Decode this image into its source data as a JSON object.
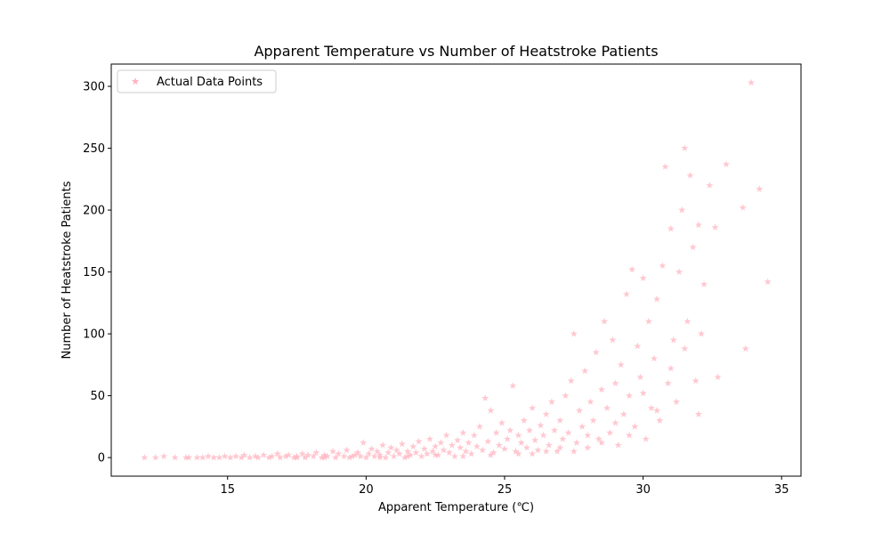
{
  "chart_data": {
    "type": "scatter",
    "title": "Apparent Temperature vs Number of Heatstroke Patients",
    "xlabel": "Apparent Temperature (℃)",
    "ylabel": "Number of Heatstroke Patients",
    "xlim": [
      10.8,
      35.7
    ],
    "ylim": [
      -15,
      318
    ],
    "xticks": [
      15,
      20,
      25,
      30,
      35
    ],
    "yticks": [
      0,
      50,
      100,
      150,
      200,
      250,
      300
    ],
    "grid": false,
    "legend": {
      "position": "top-left",
      "entries": [
        "Actual Data Points"
      ]
    },
    "marker": "star",
    "color": "#ffb6c1",
    "series": [
      {
        "name": "Actual Data Points",
        "points": [
          [
            12.0,
            0
          ],
          [
            12.4,
            0
          ],
          [
            12.7,
            1
          ],
          [
            13.1,
            0
          ],
          [
            13.5,
            0
          ],
          [
            13.6,
            0
          ],
          [
            13.9,
            0
          ],
          [
            14.1,
            0
          ],
          [
            14.3,
            1
          ],
          [
            14.5,
            0
          ],
          [
            14.7,
            0
          ],
          [
            14.9,
            1
          ],
          [
            15.1,
            0
          ],
          [
            15.3,
            1
          ],
          [
            15.5,
            0
          ],
          [
            15.6,
            2
          ],
          [
            15.8,
            0
          ],
          [
            16.0,
            1
          ],
          [
            16.1,
            0
          ],
          [
            16.3,
            2
          ],
          [
            16.5,
            0
          ],
          [
            16.6,
            1
          ],
          [
            16.8,
            3
          ],
          [
            16.9,
            0
          ],
          [
            17.1,
            1
          ],
          [
            17.2,
            2
          ],
          [
            17.4,
            0
          ],
          [
            17.5,
            1
          ],
          [
            17.7,
            3
          ],
          [
            17.8,
            0
          ],
          [
            17.9,
            2
          ],
          [
            18.1,
            1
          ],
          [
            18.2,
            4
          ],
          [
            18.4,
            0
          ],
          [
            18.5,
            2
          ],
          [
            18.6,
            1
          ],
          [
            18.8,
            5
          ],
          [
            18.9,
            0
          ],
          [
            19.0,
            3
          ],
          [
            19.2,
            1
          ],
          [
            19.3,
            6
          ],
          [
            19.4,
            0
          ],
          [
            19.6,
            2
          ],
          [
            19.7,
            4
          ],
          [
            19.8,
            1
          ],
          [
            19.9,
            12
          ],
          [
            20.0,
            0
          ],
          [
            20.1,
            3
          ],
          [
            20.2,
            7
          ],
          [
            20.3,
            1
          ],
          [
            20.4,
            5
          ],
          [
            20.5,
            2
          ],
          [
            20.6,
            10
          ],
          [
            20.7,
            0
          ],
          [
            20.8,
            4
          ],
          [
            20.9,
            8
          ],
          [
            21.0,
            1
          ],
          [
            21.1,
            6
          ],
          [
            21.2,
            3
          ],
          [
            21.3,
            11
          ],
          [
            21.4,
            0
          ],
          [
            21.5,
            5
          ],
          [
            21.6,
            2
          ],
          [
            21.7,
            9
          ],
          [
            21.8,
            4
          ],
          [
            21.9,
            13
          ],
          [
            22.0,
            1
          ],
          [
            22.1,
            7
          ],
          [
            22.2,
            3
          ],
          [
            22.3,
            15
          ],
          [
            22.4,
            5
          ],
          [
            22.5,
            9
          ],
          [
            22.6,
            2
          ],
          [
            22.7,
            12
          ],
          [
            22.8,
            6
          ],
          [
            22.9,
            18
          ],
          [
            23.0,
            4
          ],
          [
            23.1,
            10
          ],
          [
            23.2,
            1
          ],
          [
            23.3,
            14
          ],
          [
            23.4,
            8
          ],
          [
            23.5,
            20
          ],
          [
            23.6,
            5
          ],
          [
            23.7,
            12
          ],
          [
            23.8,
            3
          ],
          [
            23.9,
            18
          ],
          [
            24.0,
            9
          ],
          [
            24.1,
            25
          ],
          [
            24.2,
            6
          ],
          [
            24.3,
            48
          ],
          [
            24.4,
            13
          ],
          [
            24.5,
            38
          ],
          [
            24.6,
            4
          ],
          [
            24.7,
            20
          ],
          [
            24.8,
            10
          ],
          [
            24.9,
            28
          ],
          [
            25.0,
            7
          ],
          [
            25.1,
            15
          ],
          [
            25.2,
            22
          ],
          [
            25.3,
            58
          ],
          [
            25.4,
            5
          ],
          [
            25.5,
            18
          ],
          [
            25.6,
            12
          ],
          [
            25.7,
            30
          ],
          [
            25.8,
            8
          ],
          [
            25.9,
            22
          ],
          [
            26.0,
            40
          ],
          [
            26.1,
            14
          ],
          [
            26.2,
            6
          ],
          [
            26.3,
            26
          ],
          [
            26.4,
            18
          ],
          [
            26.5,
            35
          ],
          [
            26.6,
            10
          ],
          [
            26.7,
            45
          ],
          [
            26.8,
            22
          ],
          [
            26.9,
            5
          ],
          [
            27.0,
            30
          ],
          [
            27.1,
            15
          ],
          [
            27.2,
            50
          ],
          [
            27.3,
            20
          ],
          [
            27.4,
            62
          ],
          [
            27.5,
            100
          ],
          [
            27.6,
            12
          ],
          [
            27.7,
            38
          ],
          [
            27.8,
            25
          ],
          [
            27.9,
            70
          ],
          [
            28.0,
            8
          ],
          [
            28.1,
            45
          ],
          [
            28.2,
            30
          ],
          [
            28.3,
            85
          ],
          [
            28.4,
            15
          ],
          [
            28.5,
            55
          ],
          [
            28.6,
            110
          ],
          [
            28.7,
            40
          ],
          [
            28.8,
            20
          ],
          [
            28.9,
            95
          ],
          [
            29.0,
            60
          ],
          [
            29.1,
            10
          ],
          [
            29.2,
            75
          ],
          [
            29.3,
            35
          ],
          [
            29.4,
            132
          ],
          [
            29.5,
            50
          ],
          [
            29.6,
            152
          ],
          [
            29.7,
            25
          ],
          [
            29.8,
            90
          ],
          [
            29.9,
            65
          ],
          [
            30.0,
            145
          ],
          [
            30.1,
            15
          ],
          [
            30.2,
            110
          ],
          [
            30.3,
            40
          ],
          [
            30.4,
            80
          ],
          [
            30.5,
            128
          ],
          [
            30.6,
            30
          ],
          [
            30.7,
            155
          ],
          [
            30.8,
            235
          ],
          [
            30.9,
            60
          ],
          [
            31.0,
            185
          ],
          [
            31.1,
            95
          ],
          [
            31.2,
            45
          ],
          [
            31.3,
            150
          ],
          [
            31.4,
            200
          ],
          [
            31.5,
            250
          ],
          [
            31.6,
            110
          ],
          [
            31.7,
            228
          ],
          [
            31.8,
            170
          ],
          [
            31.9,
            62
          ],
          [
            32.0,
            188
          ],
          [
            32.1,
            100
          ],
          [
            32.2,
            140
          ],
          [
            32.4,
            220
          ],
          [
            32.6,
            186
          ],
          [
            32.7,
            65
          ],
          [
            33.0,
            237
          ],
          [
            33.6,
            202
          ],
          [
            33.7,
            88
          ],
          [
            33.9,
            303
          ],
          [
            34.2,
            217
          ],
          [
            34.5,
            142
          ],
          [
            27.0,
            8
          ],
          [
            28.0,
            18
          ],
          [
            29.0,
            28
          ],
          [
            30.0,
            52
          ],
          [
            31.0,
            72
          ],
          [
            26.0,
            3
          ],
          [
            27.5,
            5
          ],
          [
            28.5,
            12
          ],
          [
            29.5,
            18
          ],
          [
            30.5,
            38
          ],
          [
            31.5,
            88
          ],
          [
            32.0,
            35
          ],
          [
            24.5,
            2
          ],
          [
            25.5,
            3
          ],
          [
            26.5,
            5
          ],
          [
            23.5,
            1
          ],
          [
            22.5,
            2
          ],
          [
            21.5,
            1
          ],
          [
            20.5,
            0
          ],
          [
            19.5,
            1
          ],
          [
            18.5,
            0
          ],
          [
            17.5,
            0
          ]
        ]
      }
    ]
  }
}
